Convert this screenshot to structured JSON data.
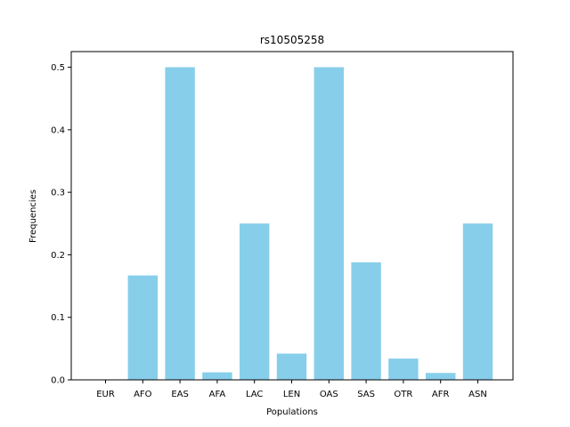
{
  "chart_data": {
    "type": "bar",
    "title": "rs10505258",
    "xlabel": "Populations",
    "ylabel": "Frequencies",
    "categories": [
      "EUR",
      "AFO",
      "EAS",
      "AFA",
      "LAC",
      "LEN",
      "OAS",
      "SAS",
      "OTR",
      "AFR",
      "ASN"
    ],
    "values": [
      0.0,
      0.167,
      0.5,
      0.012,
      0.25,
      0.042,
      0.5,
      0.188,
      0.034,
      0.011,
      0.25
    ],
    "ylim": [
      0,
      0.525
    ],
    "yticks": [
      0.0,
      0.1,
      0.2,
      0.3,
      0.4,
      0.5
    ],
    "ytick_labels": [
      "0.0",
      "0.1",
      "0.2",
      "0.3",
      "0.4",
      "0.5"
    ],
    "grid": false,
    "bar_color": "#87ceeb"
  }
}
